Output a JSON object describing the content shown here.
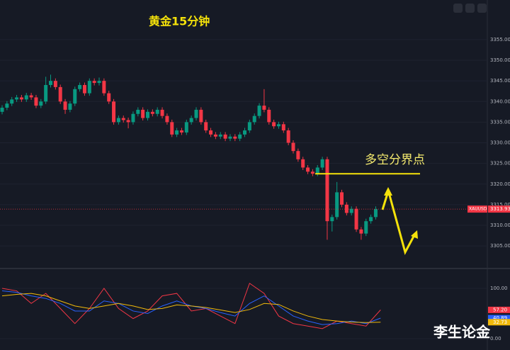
{
  "chart_data": [
    {
      "type": "candlestick",
      "title": "黄金15分钟",
      "symbol": "XAUUSD",
      "annotation": "多空分界点",
      "level": 3322.5,
      "ylim": [
        3299.7,
        3364.6
      ],
      "yticks": [
        {
          "value": 3305,
          "label": "3305.00"
        },
        {
          "value": 3310,
          "label": "3310.00"
        },
        {
          "value": 3315,
          "label": "3315.00"
        },
        {
          "value": 3320,
          "label": "3320.00"
        },
        {
          "value": 3325,
          "label": "3325.00"
        },
        {
          "value": 3330,
          "label": "3330.00"
        },
        {
          "value": 3335,
          "label": "3335.00"
        },
        {
          "value": 3340,
          "label": "3340.00"
        },
        {
          "value": 3345,
          "label": "3345.00"
        },
        {
          "value": 3350,
          "label": "3350.00"
        },
        {
          "value": 3355,
          "label": "3355.00"
        }
      ],
      "up_color": "#089981",
      "down_color": "#f23645",
      "annotation_color": "#f5e20a",
      "candles": [
        [
          3337.5,
          3339.1,
          3336.9,
          3338.5
        ],
        [
          3338.5,
          3340.1,
          3337.9,
          3339.5
        ],
        [
          3339.5,
          3341.1,
          3338.9,
          3340.5
        ],
        [
          3340.5,
          3341.6,
          3339.9,
          3341
        ],
        [
          3341,
          3341.6,
          3339.9,
          3340.5
        ],
        [
          3340.5,
          3342.1,
          3339.9,
          3341.5
        ],
        [
          3341.5,
          3342.1,
          3340.4,
          3341
        ],
        [
          3341,
          3341.6,
          3338.4,
          3339
        ],
        [
          3339,
          3340.6,
          3338.4,
          3340
        ],
        [
          3340,
          3346,
          3339.4,
          3344
        ],
        [
          3344,
          3346.5,
          3343.4,
          3345
        ],
        [
          3345,
          3345.6,
          3342.9,
          3343.5
        ],
        [
          3343.5,
          3344.1,
          3339.4,
          3340
        ],
        [
          3340,
          3340.6,
          3337,
          3338
        ],
        [
          3338,
          3340.1,
          3337.4,
          3339.5
        ],
        [
          3339.5,
          3343.6,
          3338.9,
          3343
        ],
        [
          3343,
          3344.6,
          3342.4,
          3344
        ],
        [
          3344,
          3344.6,
          3341.4,
          3342
        ],
        [
          3342,
          3345.6,
          3341.4,
          3345
        ],
        [
          3345,
          3345.6,
          3343.9,
          3344.5
        ],
        [
          3344.5,
          3345.8,
          3343.9,
          3345
        ],
        [
          3345,
          3345.6,
          3341.4,
          3342
        ],
        [
          3342,
          3342.6,
          3339.4,
          3340
        ],
        [
          3340,
          3340.6,
          3334.4,
          3335
        ],
        [
          3335,
          3336.6,
          3334.4,
          3336
        ],
        [
          3336,
          3336.6,
          3334.9,
          3335.5
        ],
        [
          3335.5,
          3336.1,
          3333.5,
          3335
        ],
        [
          3335,
          3337.6,
          3334.4,
          3337
        ],
        [
          3337,
          3338.6,
          3336.4,
          3338
        ],
        [
          3338,
          3338.6,
          3335.4,
          3336
        ],
        [
          3336,
          3338.1,
          3335.4,
          3337.5
        ],
        [
          3337.5,
          3338.1,
          3336.4,
          3337
        ],
        [
          3337,
          3338.6,
          3336.4,
          3338
        ],
        [
          3338,
          3338.6,
          3335.9,
          3336.5
        ],
        [
          3336.5,
          3337.1,
          3334.4,
          3335
        ],
        [
          3335,
          3335.6,
          3331.4,
          3332
        ],
        [
          3332,
          3333.6,
          3331.4,
          3333
        ],
        [
          3333,
          3333.6,
          3331.9,
          3332.5
        ],
        [
          3332.5,
          3335.6,
          3331.9,
          3335
        ],
        [
          3335,
          3336.6,
          3334.4,
          3336
        ],
        [
          3336,
          3338.6,
          3335.4,
          3338
        ],
        [
          3338,
          3338.6,
          3334.4,
          3335
        ],
        [
          3335,
          3335.6,
          3332.4,
          3333
        ],
        [
          3333,
          3333.6,
          3331.4,
          3332
        ],
        [
          3332,
          3332.6,
          3330.9,
          3331.5
        ],
        [
          3331.5,
          3332.6,
          3330.9,
          3332
        ],
        [
          3332,
          3332.6,
          3330.4,
          3331
        ],
        [
          3331,
          3332.1,
          3330.4,
          3331.5
        ],
        [
          3331.5,
          3332.1,
          3330.4,
          3331
        ],
        [
          3331,
          3332.6,
          3330.4,
          3332
        ],
        [
          3332,
          3333.6,
          3331.4,
          3333
        ],
        [
          3333,
          3335.6,
          3332.4,
          3335
        ],
        [
          3335,
          3337.1,
          3334.4,
          3336.5
        ],
        [
          3336.5,
          3339.6,
          3335.9,
          3339
        ],
        [
          3339,
          3343,
          3337.4,
          3338
        ],
        [
          3338,
          3338.6,
          3334.4,
          3335
        ],
        [
          3335,
          3335.6,
          3333.4,
          3334
        ],
        [
          3334,
          3335.1,
          3333.4,
          3334.5
        ],
        [
          3334.5,
          3335.1,
          3332.4,
          3333
        ],
        [
          3333,
          3333.6,
          3329.4,
          3330
        ],
        [
          3330,
          3330.6,
          3327.4,
          3328
        ],
        [
          3328,
          3328.6,
          3325.4,
          3326
        ],
        [
          3326,
          3326.6,
          3323.4,
          3324
        ],
        [
          3324,
          3324.6,
          3322.4,
          3323
        ],
        [
          3323,
          3323.6,
          3321.9,
          3322.5
        ],
        [
          3322.5,
          3324.6,
          3321.9,
          3324
        ],
        [
          3324,
          3326.6,
          3323.4,
          3326
        ],
        [
          3326,
          3326.6,
          3306.5,
          3311
        ],
        [
          3311,
          3312.6,
          3308.5,
          3312
        ],
        [
          3312,
          3320.5,
          3311.4,
          3318
        ],
        [
          3318,
          3318.6,
          3314.4,
          3315
        ],
        [
          3315,
          3315.6,
          3312.4,
          3313
        ],
        [
          3313,
          3314.6,
          3312.4,
          3314
        ],
        [
          3314,
          3314.6,
          3308.4,
          3309
        ],
        [
          3309,
          3309.6,
          3306.5,
          3308
        ],
        [
          3308,
          3311.6,
          3307.4,
          3311
        ],
        [
          3311,
          3312.6,
          3310.4,
          3312
        ],
        [
          3312,
          3314.6,
          3311.4,
          3313.93
        ]
      ]
    },
    {
      "type": "line",
      "ylim": [
        -22.5,
        138
      ],
      "yticks": [
        {
          "value": 100,
          "label": "100.00"
        },
        {
          "value": 0,
          "label": "0.00"
        }
      ],
      "series": [
        {
          "color": "#f23645",
          "last_label": "57.20",
          "values": [
            100,
            95,
            70,
            90,
            60,
            30,
            60,
            100,
            60,
            40,
            55,
            85,
            90,
            55,
            60,
            45,
            30,
            110,
            90,
            45,
            30,
            25,
            20,
            35,
            30,
            25,
            57.2
          ]
        },
        {
          "color": "#2962ff",
          "last_label": "40.89",
          "values": [
            95,
            92,
            85,
            80,
            70,
            55,
            55,
            75,
            70,
            55,
            50,
            65,
            75,
            65,
            60,
            52,
            45,
            70,
            85,
            65,
            45,
            35,
            28,
            30,
            35,
            30,
            40.89
          ]
        },
        {
          "color": "#f0b90b",
          "last_label": "32.73",
          "values": [
            85,
            88,
            90,
            85,
            75,
            65,
            60,
            65,
            70,
            65,
            58,
            60,
            67,
            65,
            62,
            57,
            52,
            58,
            70,
            68,
            55,
            45,
            38,
            35,
            33,
            32,
            32.73
          ]
        }
      ]
    }
  ],
  "watermark": "李生论金"
}
